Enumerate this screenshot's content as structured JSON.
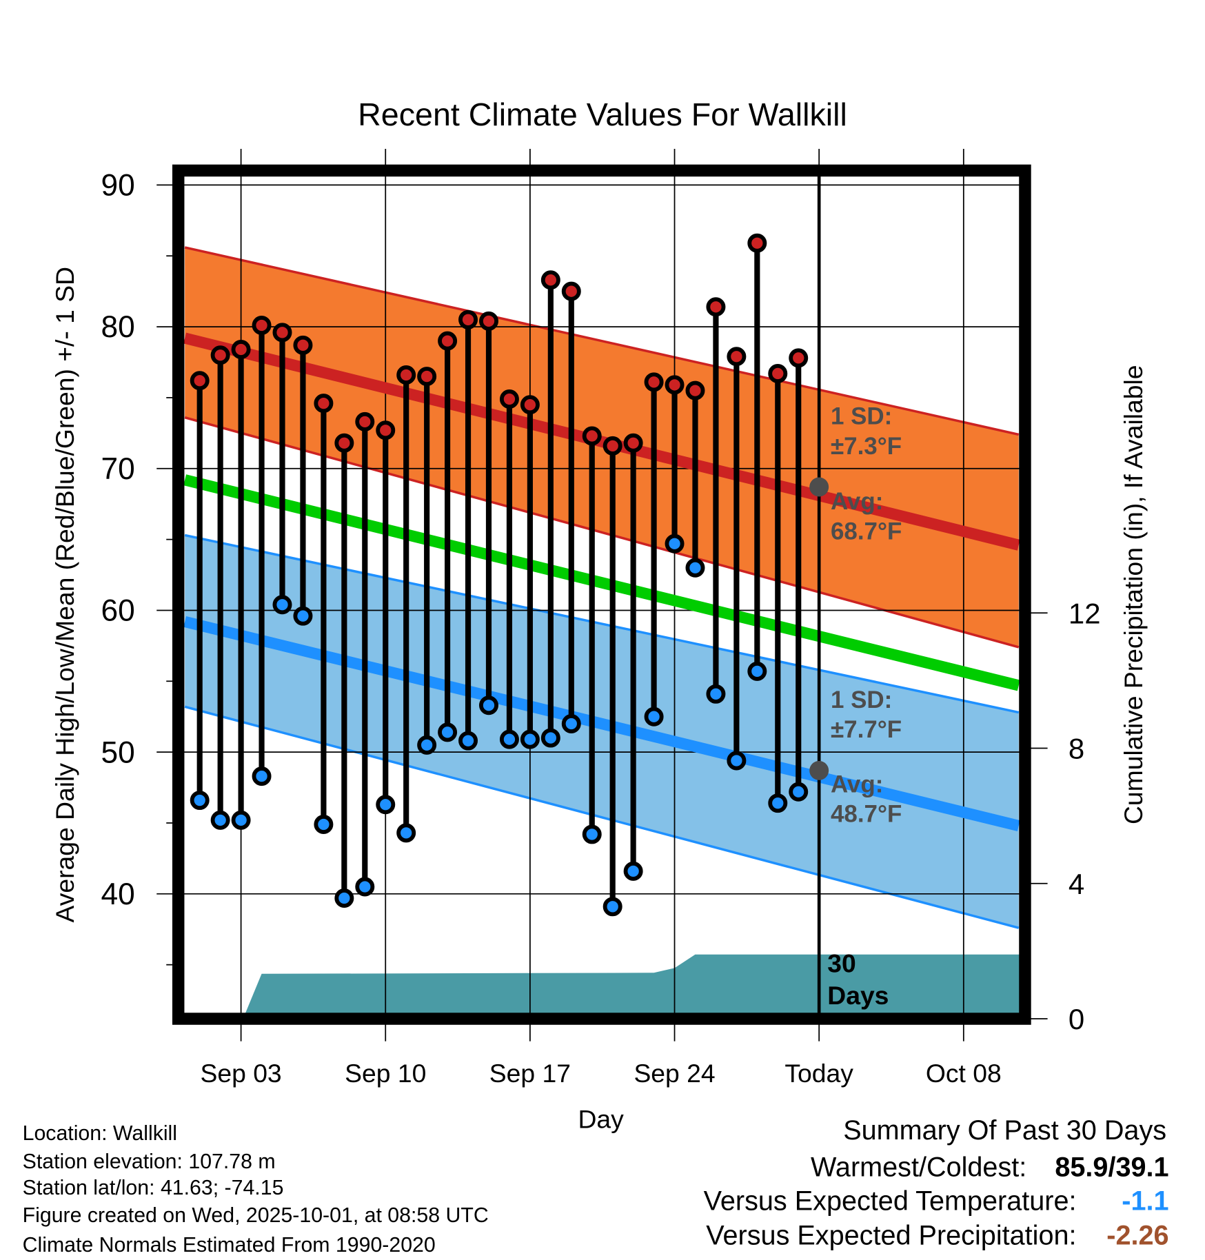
{
  "chart_data": {
    "type": "line",
    "title": "Recent Climate Values For Wallkill",
    "xlabel": "Day",
    "ylabel": "Average Daily High/Low/Mean (Red/Blue/Green) +/- 1 SD",
    "y2label": "Cumulative Precipitation (in), If Available",
    "ylim": [
      31.2,
      91.1
    ],
    "y2lim": [
      0,
      25.1
    ],
    "xlim_day_of_sept": [
      0.28,
      40.67
    ],
    "x_ticks": [
      {
        "day": 3,
        "label": "Sep 03"
      },
      {
        "day": 10,
        "label": "Sep 10"
      },
      {
        "day": 17,
        "label": "Sep 17"
      },
      {
        "day": 24,
        "label": "Sep 24"
      },
      {
        "day": 31,
        "label": "Today"
      },
      {
        "day": 38,
        "label": "Oct 08"
      }
    ],
    "y_ticks": [
      {
        "value": 40,
        "label": "40"
      },
      {
        "value": 50,
        "label": "50"
      },
      {
        "value": 60,
        "label": "60"
      },
      {
        "value": 70,
        "label": "70"
      },
      {
        "value": 80,
        "label": "80"
      },
      {
        "value": 90,
        "label": "90"
      }
    ],
    "y_minor_ticks": [
      35,
      45,
      55,
      65,
      75,
      85
    ],
    "y2_ticks": [
      {
        "value": 0,
        "label": "0"
      },
      {
        "value": 4,
        "label": "4"
      },
      {
        "value": 8,
        "label": "8"
      },
      {
        "value": 12,
        "label": "12"
      }
    ],
    "grid": true,
    "days": [
      1,
      2,
      3,
      4,
      5,
      6,
      7,
      8,
      9,
      10,
      11,
      12,
      13,
      14,
      15,
      16,
      17,
      18,
      19,
      20,
      21,
      22,
      23,
      24,
      25,
      26,
      27,
      28,
      29,
      30
    ],
    "series": [
      {
        "name": "Daily High",
        "color": "#cc2222",
        "values": [
          76.2,
          78.0,
          78.4,
          80.1,
          79.6,
          78.7,
          74.6,
          71.8,
          73.3,
          72.7,
          76.6,
          76.5,
          79.0,
          80.5,
          80.4,
          74.9,
          74.5,
          83.3,
          82.5,
          72.3,
          71.6,
          71.8,
          76.1,
          75.9,
          75.5,
          81.4,
          77.9,
          85.9,
          76.7,
          77.8
        ]
      },
      {
        "name": "Daily Low",
        "color": "#1e90ff",
        "values": [
          46.6,
          45.2,
          45.2,
          48.3,
          60.4,
          59.6,
          44.9,
          39.7,
          40.5,
          46.3,
          44.3,
          50.5,
          51.4,
          50.8,
          53.3,
          50.9,
          50.9,
          51.0,
          52.0,
          44.2,
          39.1,
          41.6,
          52.5,
          64.7,
          63.0,
          54.1,
          49.4,
          55.7,
          46.4,
          47.2
        ]
      }
    ],
    "normals": {
      "x_start_day": 0.28,
      "x_end_day": 40.67,
      "high_sd_upper": [
        85.6,
        72.4
      ],
      "avg_high": [
        79.2,
        64.6
      ],
      "high_sd_lower": [
        73.6,
        57.4
      ],
      "avg_mean": [
        69.2,
        54.7
      ],
      "low_sd_upper": [
        65.3,
        52.8
      ],
      "avg_low": [
        59.2,
        44.8
      ],
      "low_sd_lower": [
        53.2,
        37.6
      ]
    },
    "precipitation": {
      "days": [
        3.1,
        4,
        23,
        24,
        25,
        40.67
      ],
      "values": [
        0,
        1.33,
        1.36,
        1.5,
        1.9,
        1.9
      ]
    },
    "colors": {
      "high_band": "#f47a2f",
      "high_line": "#cc2222",
      "low_band": "#84c1e8",
      "low_line": "#1e90ff",
      "mean_line": "#00cc00",
      "precip": "#4a9ba5",
      "annotation": "#4d4d4d"
    },
    "annotations": {
      "high_sd_label": "1 SD:",
      "high_sd_value": "±7.3°F",
      "high_avg_label": "Avg:",
      "high_avg_value": "68.7°F",
      "high_avg_today": 68.7,
      "low_sd_label": "1 SD:",
      "low_sd_value": "±7.7°F",
      "low_avg_label": "Avg:",
      "low_avg_value": "48.7°F",
      "low_avg_today": 48.7,
      "precip_label_1": "30",
      "precip_label_2": "Days"
    }
  },
  "info": {
    "lines": [
      "Location: Wallkill",
      "Station elevation: 107.78 m",
      "Station lat/lon: 41.63; -74.15",
      "Figure created on Wed, 2025-10-01, at 08:58 UTC",
      "Climate Normals Estimated From 1990-2020"
    ]
  },
  "summary": {
    "title": "Summary Of Past 30 Days",
    "warmest_label": "Warmest/Coldest:",
    "warmest_value": "85.9/39.1",
    "temp_label": "Versus Expected Temperature:",
    "temp_value": "-1.1",
    "temp_color": "#1e90ff",
    "precip_label": "Versus Expected Precipitation:",
    "precip_value": "-2.26",
    "precip_color": "#a0522d"
  }
}
